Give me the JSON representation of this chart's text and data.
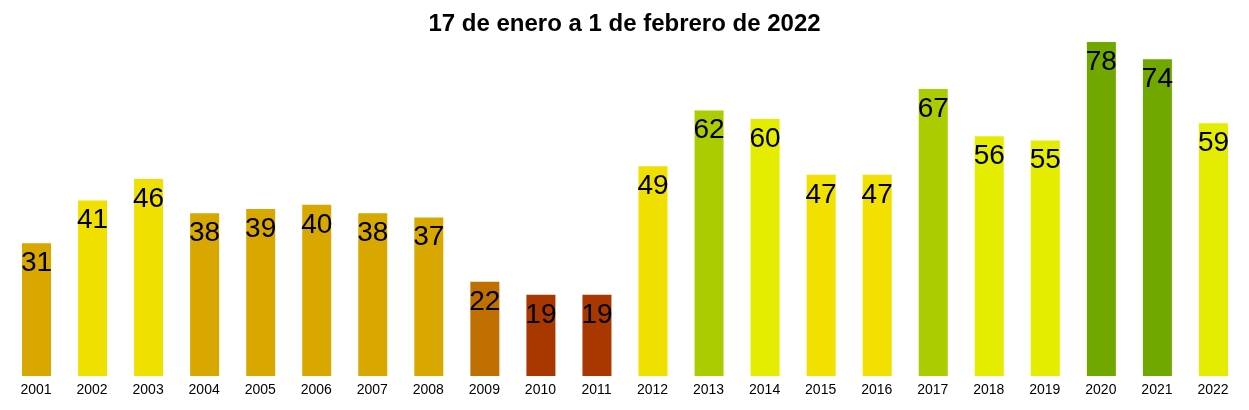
{
  "chart_data": {
    "type": "bar",
    "title": "17 de enero a 1 de febrero de 2022",
    "categories": [
      "2001",
      "2002",
      "2003",
      "2004",
      "2005",
      "2006",
      "2007",
      "2008",
      "2009",
      "2010",
      "2011",
      "2012",
      "2013",
      "2014",
      "2015",
      "2016",
      "2017",
      "2018",
      "2019",
      "2020",
      "2021",
      "2022"
    ],
    "values": [
      31,
      41,
      46,
      38,
      39,
      40,
      38,
      37,
      22,
      19,
      19,
      49,
      62,
      60,
      47,
      47,
      67,
      56,
      55,
      78,
      74,
      59
    ],
    "colors": [
      "#d9a800",
      "#f0e000",
      "#f0e000",
      "#d9a800",
      "#d9a800",
      "#d9a800",
      "#d9a800",
      "#d9a800",
      "#c07000",
      "#a83800",
      "#a83800",
      "#f0e000",
      "#aacc00",
      "#e4ec00",
      "#f2e000",
      "#f2e000",
      "#aacc00",
      "#e4ec00",
      "#e4ec00",
      "#70a800",
      "#70a800",
      "#e4ec00"
    ],
    "data_labels": true,
    "grid": false,
    "legend": false
  }
}
